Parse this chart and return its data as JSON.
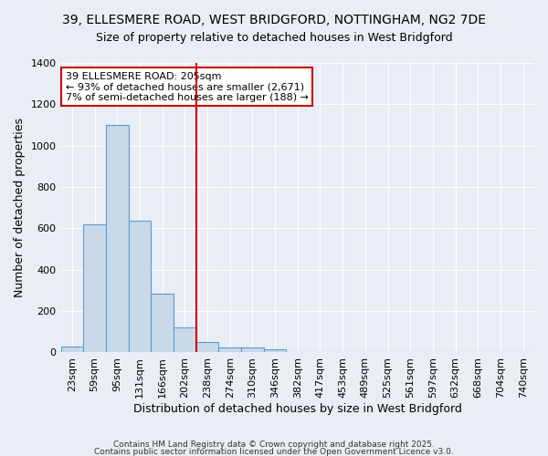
{
  "title1": "39, ELLESMERE ROAD, WEST BRIDGFORD, NOTTINGHAM, NG2 7DE",
  "title2": "Size of property relative to detached houses in West Bridgford",
  "xlabel": "Distribution of detached houses by size in West Bridgford",
  "ylabel": "Number of detached properties",
  "categories": [
    "23sqm",
    "59sqm",
    "95sqm",
    "131sqm",
    "166sqm",
    "202sqm",
    "238sqm",
    "274sqm",
    "310sqm",
    "346sqm",
    "382sqm",
    "417sqm",
    "453sqm",
    "489sqm",
    "525sqm",
    "561sqm",
    "597sqm",
    "632sqm",
    "668sqm",
    "704sqm",
    "740sqm"
  ],
  "values": [
    30,
    620,
    1100,
    635,
    285,
    120,
    50,
    25,
    25,
    15,
    0,
    0,
    0,
    0,
    0,
    0,
    0,
    0,
    0,
    0,
    0
  ],
  "bar_color": "#c9d9e8",
  "bar_edge_color": "#5b9bd5",
  "red_line_x": 5.5,
  "annotation_line1": "39 ELLESMERE ROAD: 205sqm",
  "annotation_line2": "← 93% of detached houses are smaller (2,671)",
  "annotation_line3": "7% of semi-detached houses are larger (188) →",
  "annotation_box_color": "#ffffff",
  "annotation_box_edge": "#cc0000",
  "ylim": [
    0,
    1400
  ],
  "yticks": [
    0,
    200,
    400,
    600,
    800,
    1000,
    1200,
    1400
  ],
  "background_color": "#e8eef4",
  "grid_color": "#ffffff",
  "red_line_color": "#cc0000",
  "footer1": "Contains HM Land Registry data © Crown copyright and database right 2025.",
  "footer2": "Contains public sector information licensed under the Open Government Licence v3.0.",
  "title1_fontsize": 10,
  "title2_fontsize": 9,
  "axis_label_fontsize": 9,
  "tick_fontsize": 8,
  "annotation_fontsize": 8
}
